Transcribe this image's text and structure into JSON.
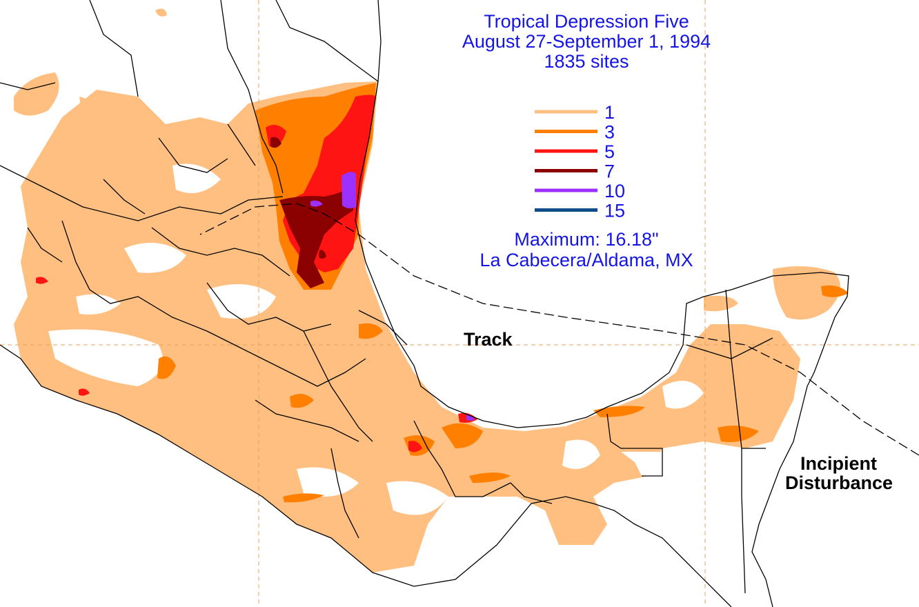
{
  "title": {
    "line1": "Tropical Depression Five",
    "line2": "August 27-September 1, 1994",
    "line3": "1835 sites"
  },
  "legend": [
    {
      "label": "1",
      "color": "#ffbf80"
    },
    {
      "label": "3",
      "color": "#ff8000"
    },
    {
      "label": "5",
      "color": "#ff1414"
    },
    {
      "label": "7",
      "color": "#8b0000"
    },
    {
      "label": "10",
      "color": "#9b30ff"
    },
    {
      "label": "15",
      "color": "#104e8b"
    }
  ],
  "maximum": {
    "line1": "Maximum:  16.18\"",
    "line2": "La Cabecera/Aldama, MX"
  },
  "labels": {
    "track": "Track",
    "incipient_line1": "Incipient",
    "incipient_line2": "Disturbance"
  },
  "colors": {
    "title_text": "#1414e6",
    "gridline": "#e0a060",
    "boundary": "#000000",
    "background": "#ffffff"
  }
}
